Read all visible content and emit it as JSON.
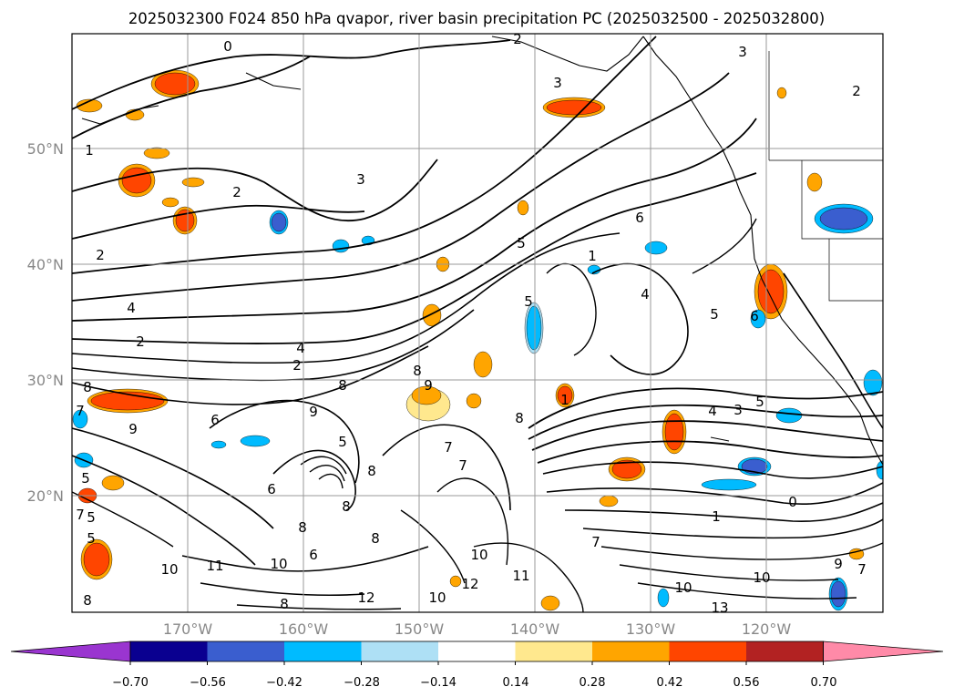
{
  "title": "2025032300 F024 850 hPa qvapor, river basin precipitation PC (2025032500 - 2025032800)",
  "map": {
    "projection": "PlateCarree",
    "lon_range": [
      -180,
      -110
    ],
    "lat_range": [
      10,
      60
    ],
    "lat_labels": [
      "50°N",
      "40°N",
      "30°N",
      "20°N"
    ],
    "lon_labels": [
      "170°W",
      "160°W",
      "150°W",
      "140°W",
      "130°W",
      "120°W"
    ],
    "gridlines": true,
    "contour_labels": [
      "0",
      "2",
      "3",
      "3",
      "2",
      "1",
      "2",
      "3",
      "6",
      "5",
      "1",
      "4",
      "2",
      "2",
      "4",
      "2",
      "4",
      "5",
      "6",
      "5",
      "9",
      "8",
      "6",
      "8",
      "9",
      "7",
      "5",
      "5",
      "4",
      "3",
      "5",
      "1",
      "8",
      "7",
      "6",
      "8",
      "8",
      "6",
      "8",
      "7",
      "5",
      "7",
      "5",
      "8",
      "9",
      "7",
      "0",
      "1",
      "10",
      "11",
      "10",
      "12",
      "10",
      "11",
      "12",
      "10",
      "10",
      "13",
      "9",
      "7",
      "8",
      "8",
      "10",
      "8"
    ]
  },
  "colorbar": {
    "ticks": [
      "−0.70",
      "−0.56",
      "−0.42",
      "−0.28",
      "−0.14",
      "0.14",
      "0.28",
      "0.42",
      "0.56",
      "0.70"
    ],
    "colors": [
      "#0a0090",
      "#3a5ecf",
      "#00bbff",
      "#aee0f5",
      "#ffffff",
      "#ffffff",
      "#ffe88e",
      "#ffa500",
      "#ff4500",
      "#b22222",
      "#ff8aa8"
    ],
    "under_color": "#9a35d0",
    "over_color": "#ff8aa8"
  }
}
